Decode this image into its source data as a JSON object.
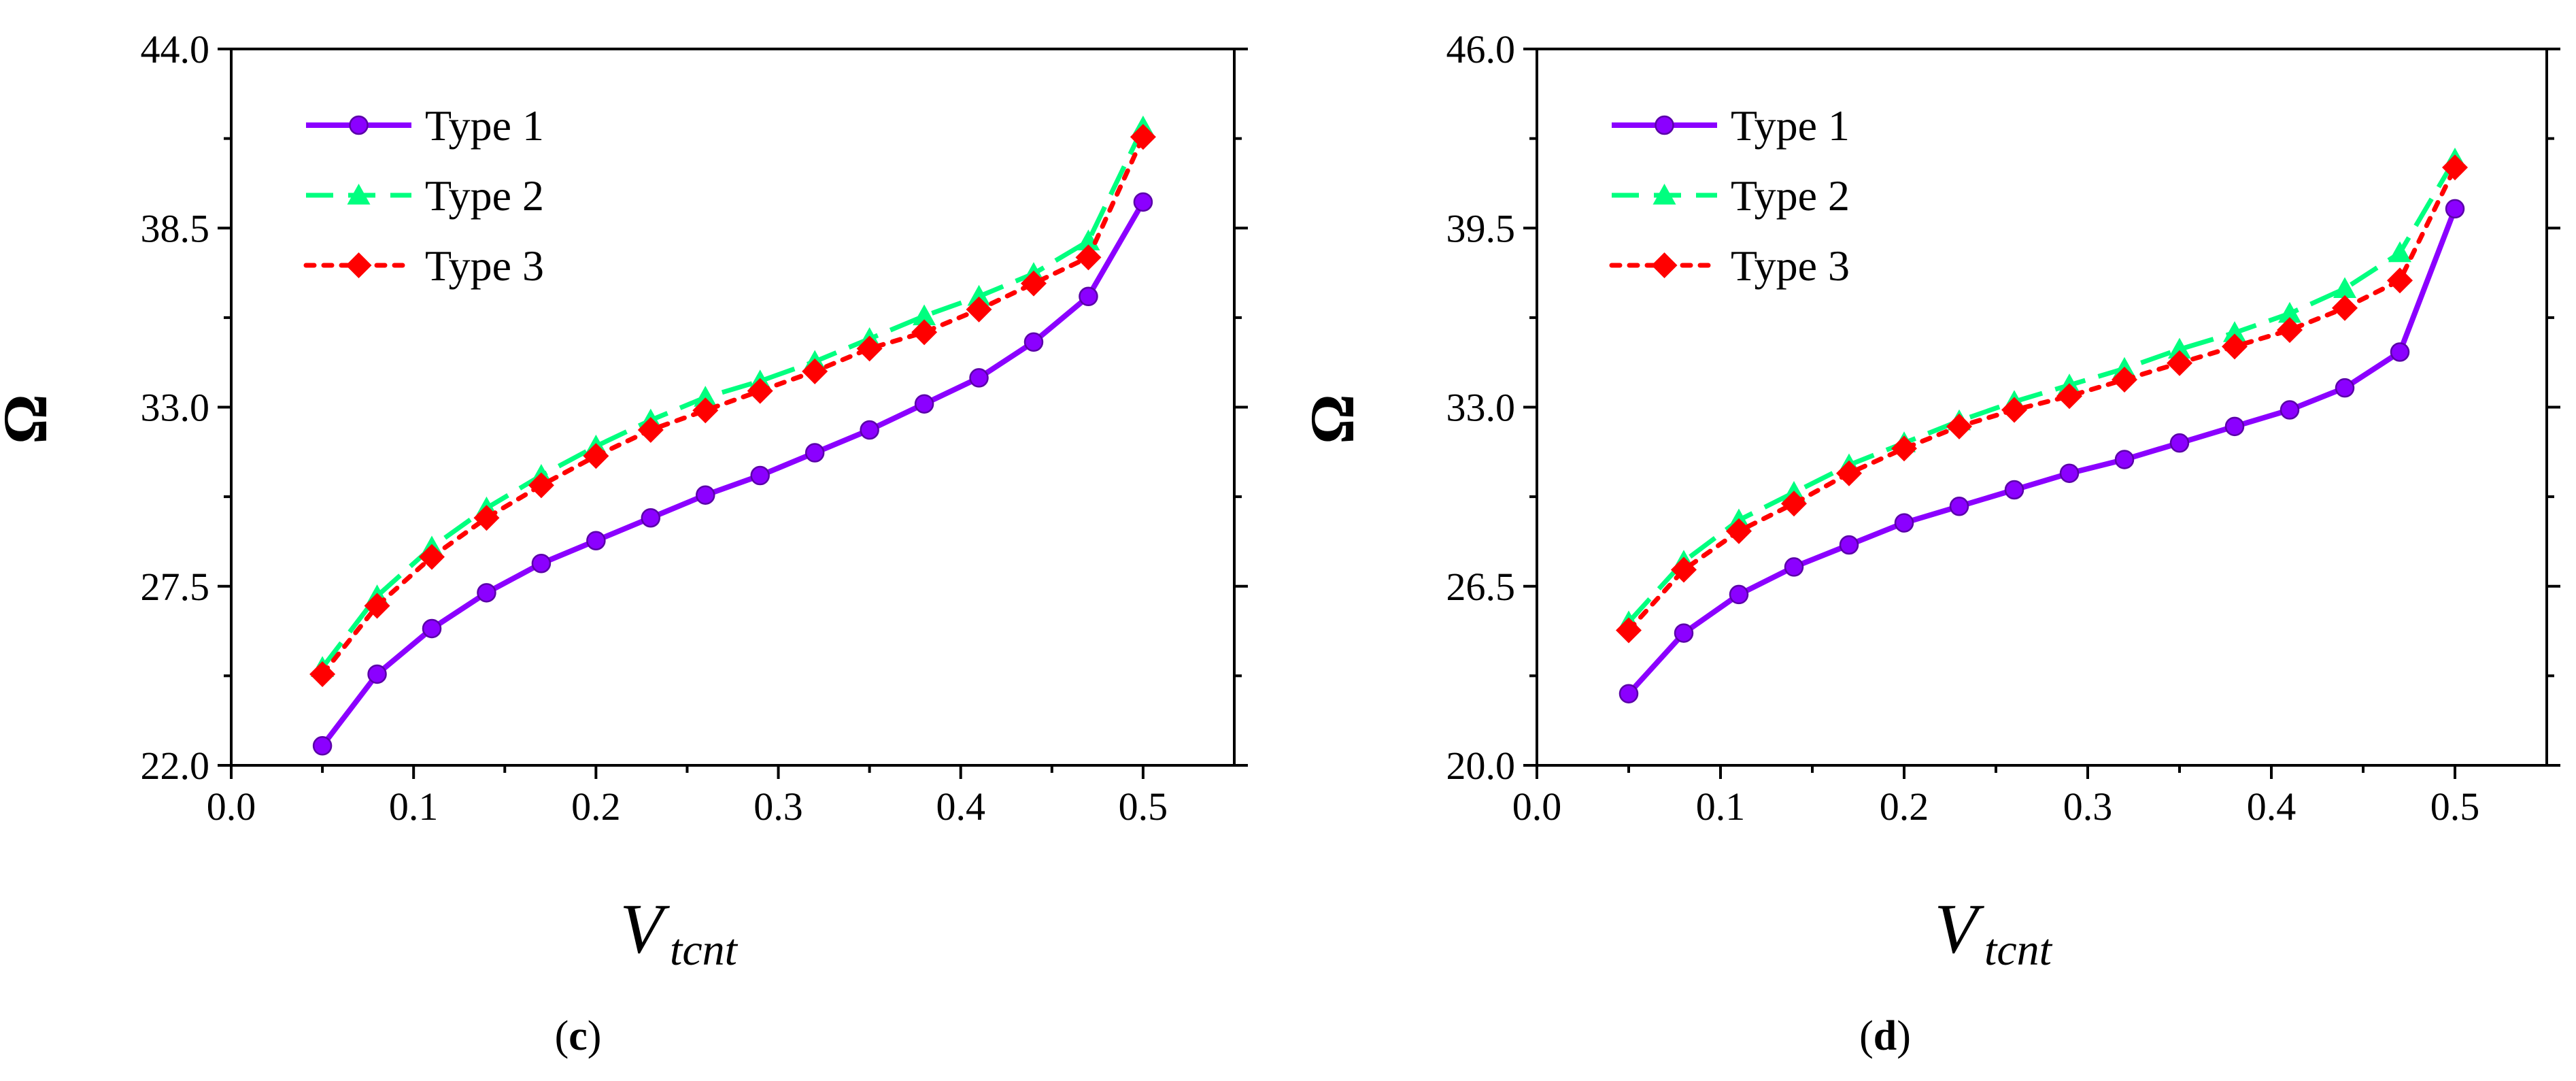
{
  "chart_data": [
    {
      "type": "line",
      "panel_label": "c",
      "xlabel": {
        "main": "V",
        "sub": "tcnt"
      },
      "ylabel": "Ω",
      "xlim": [
        0.0,
        0.55
      ],
      "ylim": [
        22.0,
        44.0
      ],
      "xticks": [
        0.0,
        0.1,
        0.2,
        0.3,
        0.4,
        0.5
      ],
      "xtick_labels": [
        "0.0",
        "0.1",
        "0.2",
        "0.3",
        "0.4",
        "0.5"
      ],
      "yticks": [
        22.0,
        27.5,
        33.0,
        38.5,
        44.0
      ],
      "ytick_labels": [
        "22.0",
        "27.5",
        "33.0",
        "38.5",
        "44.0"
      ],
      "x": [
        0.05,
        0.08,
        0.11,
        0.14,
        0.17,
        0.2,
        0.23,
        0.26,
        0.29,
        0.32,
        0.35,
        0.38,
        0.41,
        0.44,
        0.47,
        0.5
      ],
      "series": [
        {
          "name": "Type 1",
          "color": "#8b00ff",
          "style": "solid",
          "marker": "circle",
          "values": [
            22.6,
            24.8,
            26.2,
            27.3,
            28.2,
            28.9,
            29.6,
            30.3,
            30.9,
            31.6,
            32.3,
            33.1,
            33.9,
            35.0,
            36.4,
            39.3
          ]
        },
        {
          "name": "Type 2",
          "color": "#00ff7f",
          "style": "dashed",
          "marker": "triangle",
          "values": [
            25.0,
            27.2,
            28.7,
            29.9,
            30.9,
            31.8,
            32.6,
            33.3,
            33.8,
            34.4,
            35.1,
            35.8,
            36.4,
            37.1,
            38.1,
            41.6
          ]
        },
        {
          "name": "Type 3",
          "color": "#ff0000",
          "style": "dotted",
          "marker": "diamond",
          "values": [
            24.8,
            26.9,
            28.4,
            29.6,
            30.6,
            31.5,
            32.3,
            32.9,
            33.5,
            34.1,
            34.8,
            35.3,
            36.0,
            36.8,
            37.6,
            41.3
          ]
        }
      ],
      "legend": "top-left",
      "grid": false
    },
    {
      "type": "line",
      "panel_label": "d",
      "xlabel": {
        "main": "V",
        "sub": "tcnt"
      },
      "ylabel": "Ω",
      "xlim": [
        0.0,
        0.55
      ],
      "ylim": [
        20.0,
        46.0
      ],
      "xticks": [
        0.0,
        0.1,
        0.2,
        0.3,
        0.4,
        0.5
      ],
      "xtick_labels": [
        "0.0",
        "0.1",
        "0.2",
        "0.3",
        "0.4",
        "0.5"
      ],
      "yticks": [
        20.0,
        26.5,
        33.0,
        39.5,
        46.0
      ],
      "ytick_labels": [
        "20.0",
        "26.5",
        "33.0",
        "39.5",
        "46.0"
      ],
      "x": [
        0.05,
        0.08,
        0.11,
        0.14,
        0.17,
        0.2,
        0.23,
        0.26,
        0.29,
        0.32,
        0.35,
        0.38,
        0.41,
        0.44,
        0.47,
        0.5
      ],
      "series": [
        {
          "name": "Type 1",
          "color": "#8b00ff",
          "style": "solid",
          "marker": "circle",
          "values": [
            22.6,
            24.8,
            26.2,
            27.2,
            28.0,
            28.8,
            29.4,
            30.0,
            30.6,
            31.1,
            31.7,
            32.3,
            32.9,
            33.7,
            35.0,
            40.2
          ]
        },
        {
          "name": "Type 2",
          "color": "#00ff7f",
          "style": "dashed",
          "marker": "triangle",
          "values": [
            25.2,
            27.4,
            28.9,
            29.9,
            30.9,
            31.7,
            32.5,
            33.2,
            33.8,
            34.4,
            35.1,
            35.7,
            36.4,
            37.3,
            38.6,
            42.0
          ]
        },
        {
          "name": "Type 3",
          "color": "#ff0000",
          "style": "dotted",
          "marker": "diamond",
          "values": [
            24.9,
            27.1,
            28.5,
            29.5,
            30.6,
            31.5,
            32.3,
            32.9,
            33.4,
            34.0,
            34.6,
            35.2,
            35.8,
            36.6,
            37.6,
            41.7
          ]
        }
      ],
      "legend": "top-left",
      "grid": false
    }
  ]
}
